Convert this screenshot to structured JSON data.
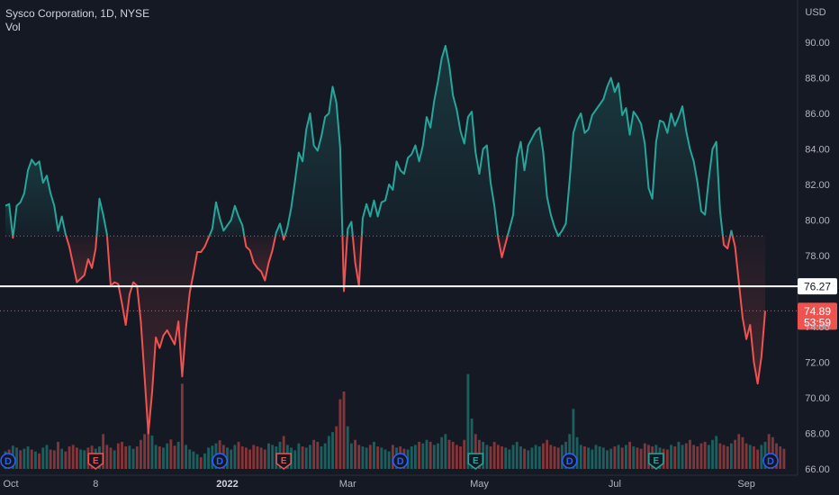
{
  "header": {
    "symbol_line": "Sysco Corporation, 1D, NYSE",
    "indicator": "Vol"
  },
  "colors": {
    "background": "#151924",
    "up": "#26a69a",
    "down": "#ef5350",
    "baseline_line": "#ffffff",
    "axis_text": "#b2b5be",
    "grid": "#1f2430"
  },
  "chart_data": {
    "type": "line",
    "style": "baseline",
    "currency": "USD",
    "ylim": [
      66,
      91
    ],
    "y_ticks": [
      "90.00",
      "88.00",
      "86.00",
      "84.00",
      "82.00",
      "80.00",
      "78.00",
      "76.00",
      "74.00",
      "72.00",
      "70.00",
      "68.00",
      "66.00"
    ],
    "y_tick_values": [
      90,
      88,
      86,
      84,
      82,
      80,
      78,
      76,
      74,
      72,
      70,
      68,
      66
    ],
    "x_labels": [
      "Oct",
      "8",
      "2022",
      "Mar",
      "May",
      "Jul",
      "Sep"
    ],
    "x_label_index": [
      0,
      24,
      59,
      91,
      126,
      162,
      197
    ],
    "grid": false,
    "baseline_value": 79.1,
    "horizontal_line": {
      "value": 76.27,
      "label": "76.27"
    },
    "last_price": {
      "value": 74.89,
      "label": "74.89",
      "countdown": "53:59"
    },
    "series": [
      {
        "values": [
          80.8,
          80.9,
          79.0,
          80.8,
          81.0,
          81.5,
          82.8,
          83.4,
          83.1,
          83.3,
          82.1,
          82.5,
          81.5,
          80.8,
          79.4,
          80.2,
          79.2,
          78.5,
          77.5,
          76.5,
          76.7,
          76.9,
          77.8,
          77.3,
          78.4,
          81.2,
          80.3,
          79.2,
          76.3,
          76.5,
          76.4,
          75.3,
          74.1,
          75.8,
          76.5,
          76.3,
          74.3,
          71.2,
          68.0,
          70.3,
          73.4,
          72.8,
          73.5,
          73.8,
          73.4,
          73.0,
          74.3,
          71.2,
          73.9,
          75.9,
          77.0,
          78.2,
          78.2,
          78.5,
          79.0,
          79.5,
          81.0,
          80.1,
          79.4,
          79.7,
          80.0,
          80.8,
          80.2,
          79.7,
          78.5,
          78.3,
          77.6,
          77.3,
          77.1,
          76.6,
          77.6,
          78.3,
          79.3,
          79.8,
          78.9,
          79.6,
          80.7,
          82.2,
          83.8,
          83.3,
          85.1,
          86.0,
          84.2,
          83.9,
          84.7,
          85.8,
          86.0,
          87.5,
          86.6,
          84.1,
          76.0,
          79.5,
          79.9,
          77.6,
          76.3,
          80.1,
          80.9,
          80.2,
          81.1,
          80.2,
          81.0,
          81.1,
          82.0,
          81.7,
          83.3,
          82.8,
          82.6,
          83.5,
          83.7,
          84.2,
          83.3,
          84.2,
          85.8,
          85.2,
          86.7,
          87.8,
          89.1,
          89.8,
          88.7,
          87.0,
          86.2,
          85.0,
          84.3,
          85.8,
          86.1,
          83.8,
          82.6,
          84.0,
          84.2,
          82.1,
          80.8,
          79.0,
          77.9,
          78.7,
          79.5,
          80.3,
          83.5,
          84.4,
          82.8,
          84.2,
          84.6,
          85.0,
          85.2,
          83.8,
          81.3,
          80.3,
          79.6,
          79.1,
          79.4,
          79.8,
          82.2,
          84.9,
          85.6,
          86.0,
          84.9,
          85.1,
          85.9,
          86.2,
          86.5,
          86.8,
          87.5,
          88.0,
          87.2,
          87.7,
          85.9,
          86.3,
          84.8,
          86.1,
          85.8,
          85.4,
          84.3,
          81.8,
          81.2,
          84.4,
          85.6,
          85.5,
          84.9,
          86.0,
          85.3,
          85.8,
          86.4,
          85.0,
          84.0,
          83.3,
          82.1,
          80.5,
          80.3,
          82.3,
          84.0,
          84.4,
          80.5,
          78.6,
          78.4,
          79.4,
          78.5,
          76.5,
          74.5,
          73.3,
          74.1,
          72.0,
          70.8,
          72.3,
          74.89
        ]
      }
    ],
    "volume": {
      "values": [
        0.45,
        0.5,
        0.6,
        0.55,
        0.48,
        0.52,
        0.58,
        0.5,
        0.45,
        0.4,
        0.55,
        0.62,
        0.5,
        0.48,
        0.7,
        0.52,
        0.45,
        0.58,
        0.62,
        0.55,
        0.5,
        0.48,
        0.55,
        0.6,
        0.52,
        0.58,
        0.9,
        0.62,
        0.55,
        0.48,
        0.66,
        0.7,
        0.58,
        0.6,
        0.52,
        0.58,
        0.75,
        0.9,
        1.0,
        0.86,
        0.62,
        0.58,
        0.55,
        0.66,
        0.76,
        0.6,
        0.7,
        2.2,
        0.62,
        0.5,
        0.45,
        0.38,
        0.3,
        0.4,
        0.55,
        0.6,
        0.66,
        0.74,
        0.62,
        0.55,
        0.5,
        0.62,
        0.7,
        0.58,
        0.55,
        0.5,
        0.62,
        0.58,
        0.55,
        0.5,
        0.66,
        0.62,
        0.58,
        0.7,
        0.85,
        0.62,
        0.55,
        0.48,
        0.66,
        0.58,
        0.55,
        0.62,
        0.75,
        0.7,
        0.58,
        0.66,
        0.85,
        0.95,
        1.1,
        1.8,
        2.0,
        1.1,
        0.66,
        0.75,
        0.62,
        0.58,
        0.55,
        0.62,
        0.7,
        0.58,
        0.55,
        0.5,
        0.45,
        0.62,
        0.55,
        0.58,
        0.52,
        0.5,
        0.58,
        0.62,
        0.7,
        0.66,
        0.75,
        0.7,
        0.62,
        0.66,
        0.82,
        0.9,
        0.75,
        0.7,
        0.62,
        0.58,
        0.75,
        2.45,
        1.3,
        0.9,
        0.75,
        0.7,
        0.62,
        0.58,
        0.7,
        0.62,
        0.58,
        0.55,
        0.5,
        0.62,
        0.7,
        0.58,
        0.52,
        0.48,
        0.55,
        0.62,
        0.58,
        0.66,
        0.75,
        0.62,
        0.58,
        0.55,
        0.62,
        0.7,
        0.9,
        1.55,
        0.82,
        0.62,
        0.58,
        0.55,
        0.5,
        0.62,
        0.58,
        0.55,
        0.48,
        0.52,
        0.58,
        0.62,
        0.55,
        0.62,
        0.7,
        0.58,
        0.55,
        0.52,
        0.66,
        0.62,
        0.58,
        0.62,
        0.55,
        0.52,
        0.5,
        0.62,
        0.58,
        0.7,
        0.62,
        0.66,
        0.75,
        0.62,
        0.58,
        0.66,
        0.7,
        0.62,
        0.75,
        0.85,
        0.66,
        0.62,
        0.58,
        0.66,
        0.75,
        0.9,
        0.82,
        0.66,
        0.62,
        0.58,
        0.5,
        0.62,
        0.7,
        0.9,
        0.82,
        0.66,
        0.58,
        0.52
      ],
      "up_flags": [
        1,
        0,
        1,
        1,
        0,
        1,
        1,
        0,
        1,
        0,
        1,
        1,
        0,
        0,
        0,
        1,
        0,
        0,
        0,
        0,
        1,
        1,
        0,
        0,
        1,
        1,
        0,
        0,
        0,
        1,
        0,
        0,
        0,
        1,
        1,
        0,
        0,
        0,
        0,
        1,
        1,
        0,
        1,
        1,
        0,
        0,
        1,
        0,
        1,
        1,
        1,
        1,
        0,
        1,
        1,
        1,
        1,
        0,
        0,
        1,
        1,
        1,
        0,
        0,
        0,
        0,
        0,
        0,
        0,
        0,
        1,
        1,
        1,
        1,
        0,
        1,
        1,
        1,
        1,
        0,
        1,
        1,
        0,
        0,
        1,
        1,
        1,
        1,
        0,
        0,
        0,
        1,
        1,
        0,
        0,
        1,
        1,
        0,
        1,
        0,
        1,
        1,
        1,
        0,
        1,
        0,
        0,
        1,
        1,
        1,
        0,
        1,
        1,
        0,
        1,
        1,
        1,
        1,
        0,
        0,
        0,
        0,
        0,
        1,
        1,
        0,
        0,
        1,
        1,
        0,
        0,
        0,
        0,
        1,
        1,
        1,
        1,
        1,
        0,
        1,
        1,
        1,
        1,
        0,
        0,
        0,
        0,
        0,
        1,
        1,
        1,
        1,
        1,
        1,
        0,
        1,
        1,
        1,
        1,
        1,
        1,
        1,
        0,
        1,
        0,
        1,
        0,
        1,
        0,
        0,
        0,
        0,
        0,
        1,
        1,
        0,
        0,
        1,
        0,
        1,
        1,
        0,
        0,
        0,
        0,
        0,
        0,
        1,
        1,
        1,
        0,
        0,
        0,
        1,
        0,
        0,
        0,
        0,
        1,
        0,
        0,
        1,
        1
      ]
    },
    "events": [
      {
        "index": 0,
        "type": "D"
      },
      {
        "index": 24,
        "type": "E"
      },
      {
        "index": 57,
        "type": "D"
      },
      {
        "index": 74,
        "type": "E"
      },
      {
        "index": 105,
        "type": "D"
      },
      {
        "index": 125,
        "type": "E"
      },
      {
        "index": 150,
        "type": "D"
      },
      {
        "index": 173,
        "type": "E"
      },
      {
        "index": 205,
        "type": "D"
      }
    ]
  }
}
